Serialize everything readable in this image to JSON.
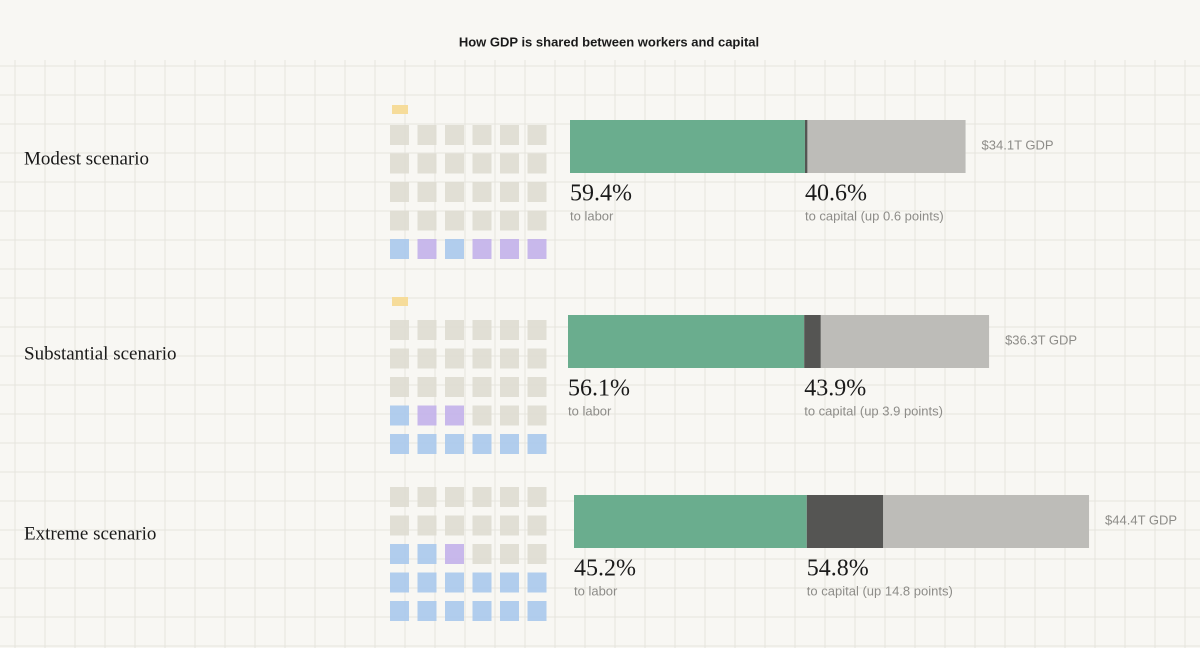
{
  "chart_data": {
    "type": "stacked-bar",
    "title": "How GDP is shared between workers and capital",
    "categories": [
      "Modest scenario",
      "Substantial scenario",
      "Extreme scenario"
    ],
    "series": [
      {
        "name": "to labor",
        "color": "#6aad8e",
        "values": [
          59.4,
          56.1,
          45.2
        ],
        "value_labels": [
          "59.4%",
          "56.1%",
          "45.2%"
        ]
      },
      {
        "color": "#bdbcb8",
        "values": [
          40.6,
          43.9,
          54.8
        ],
        "value_labels": [
          "40.6%",
          "43.9%",
          "54.8%"
        ],
        "notes": [
          "to capital (up 0.6 points)",
          "to capital (up 3.9 points)",
          "to capital (up 14.8 points)"
        ]
      }
    ],
    "increase": {
      "color": "#555553",
      "values": [
        0.6,
        3.9,
        14.8
      ]
    },
    "gdp": {
      "values": [
        34.1,
        36.3,
        44.4
      ],
      "value_labels": [
        "$34.1T GDP",
        "$36.3T GDP",
        "$44.4T GDP"
      ]
    }
  }
}
